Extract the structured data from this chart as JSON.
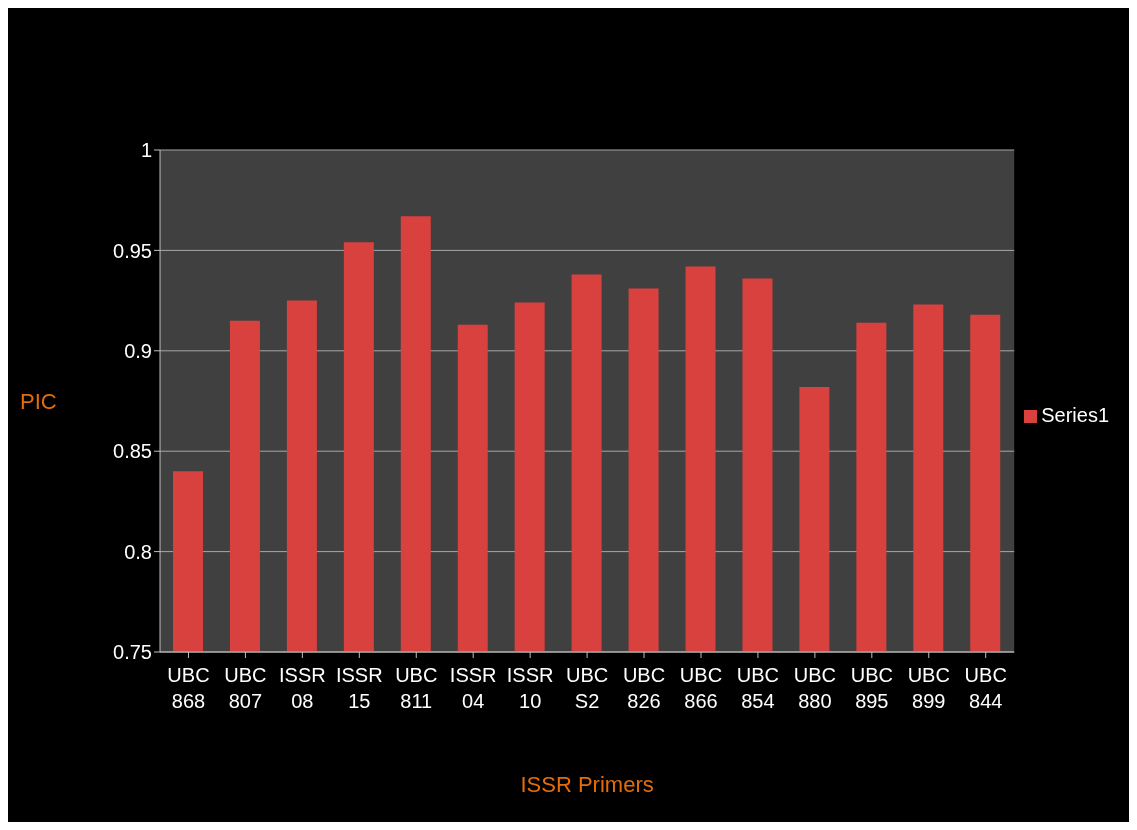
{
  "chart_data": {
    "type": "bar",
    "xlabel": "ISSR Primers",
    "ylabel": "PIC",
    "categories": [
      "UBC 868",
      "UBC 807",
      "ISSR 08",
      "ISSR 15",
      "UBC 811",
      "ISSR 04",
      "ISSR 10",
      "UBC S2",
      "UBC 826",
      "UBC 866",
      "UBC 854",
      "UBC 880",
      "UBC 895",
      "UBC 899",
      "UBC 844"
    ],
    "series": [
      {
        "name": "Series1",
        "color": "#d9413f",
        "values": [
          0.84,
          0.915,
          0.925,
          0.954,
          0.967,
          0.913,
          0.924,
          0.938,
          0.931,
          0.942,
          0.936,
          0.882,
          0.914,
          0.923,
          0.918
        ]
      }
    ],
    "ylim": [
      0.75,
      1
    ],
    "yticks": [
      0.75,
      0.8,
      0.85,
      0.9,
      0.95,
      1
    ],
    "grid": "y",
    "legend": "right"
  }
}
